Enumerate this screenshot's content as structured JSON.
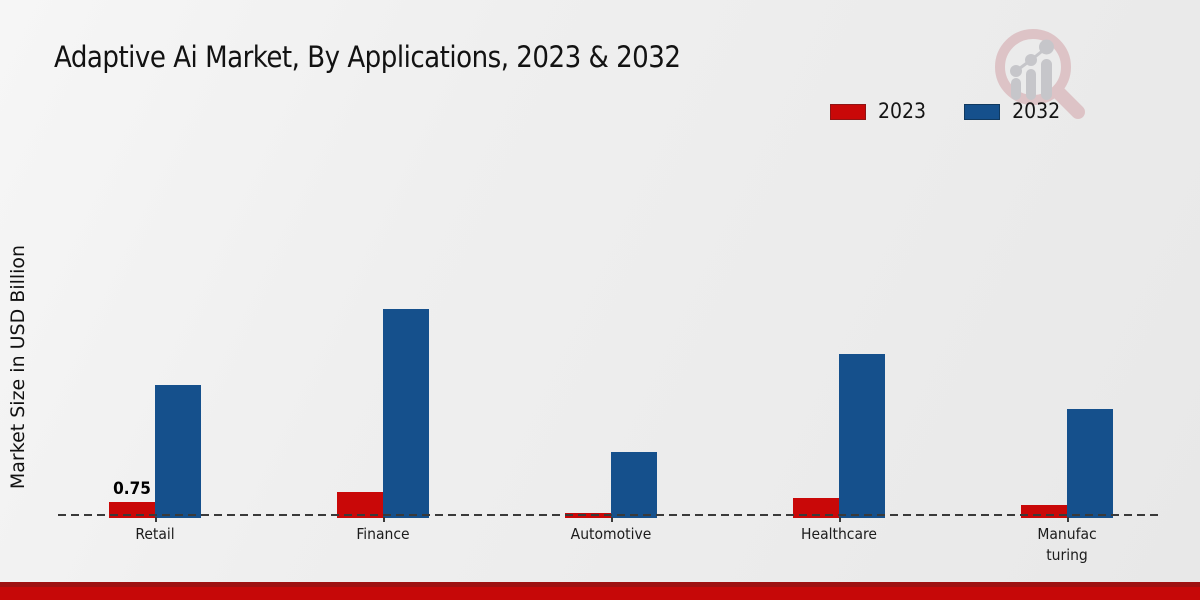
{
  "title": "Adaptive Ai Market, By Applications, 2023 & 2032",
  "y_axis_label": "Market Size in USD Billion",
  "legend": {
    "position": "top-right",
    "items": [
      {
        "label": "2023",
        "color": "#c90808",
        "border": "#8f1414"
      },
      {
        "label": "2032",
        "color": "#15508c",
        "border": "#10395f"
      }
    ]
  },
  "colors": {
    "series_2023": "#c90808",
    "series_2032": "#15508c",
    "footer_bar": "#c60808",
    "footer_bar_accent": "#9e1111",
    "background": "#ededed",
    "baseline": "#3a3a3a",
    "logo_ring": "#ddc3c6",
    "logo_bars": "#c6c6ca"
  },
  "branding": {
    "logo": "magnifier-bar-chart-logo"
  },
  "chart_data": {
    "type": "bar",
    "title": "Adaptive Ai Market, By Applications, 2023 & 2032",
    "xlabel": "",
    "ylabel": "Market Size in USD Billion",
    "categories": [
      "Retail",
      "Finance",
      "Automotive",
      "Healthcare",
      "Manufac\nturing"
    ],
    "series": [
      {
        "name": "2023",
        "color": "#c90808",
        "values": [
          0.75,
          1.18,
          0.23,
          0.91,
          0.59
        ]
      },
      {
        "name": "2032",
        "color": "#15508c",
        "values": [
          6.05,
          9.5,
          3.0,
          7.45,
          4.95
        ]
      }
    ],
    "data_labels": [
      {
        "category_index": 0,
        "series_index": 0,
        "text": "0.75"
      }
    ],
    "ylim": [
      0,
      10
    ],
    "grid": false,
    "axis_style": "dashed-baseline-only",
    "legend_position": "top-right"
  }
}
